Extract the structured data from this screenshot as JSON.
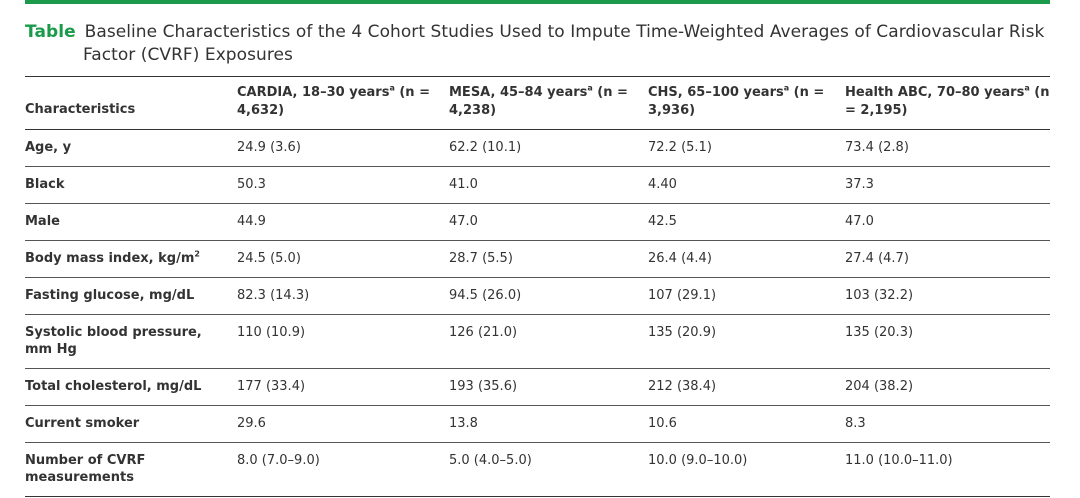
{
  "caption": {
    "label": "Table",
    "text": "Baseline Characteristics of the 4 Cohort Studies Used to Impute Time-Weighted Averages of Cardiovascular Risk Factor (CVRF) Exposures"
  },
  "header": {
    "characteristics": "Characteristics",
    "columns": [
      {
        "name": "CARDIA, 18–30 years",
        "sup": "a",
        "n": " (n = 4,632)"
      },
      {
        "name": "MESA, 45–84 years",
        "sup": "a",
        "n": " (n = 4,238)"
      },
      {
        "name": "CHS, 65–100 years",
        "sup": "a",
        "n": " (n = 3,936)"
      },
      {
        "name": "Health ABC, 70–80 years",
        "sup": "a",
        "n": " (n = 2,195)"
      }
    ]
  },
  "rows": [
    {
      "label": "Age, y",
      "sup": "",
      "values": [
        "24.9 (3.6)",
        "62.2 (10.1)",
        "72.2 (5.1)",
        "73.4 (2.8)"
      ]
    },
    {
      "label": "Black",
      "sup": "",
      "values": [
        "50.3",
        "41.0",
        "4.40",
        "37.3"
      ]
    },
    {
      "label": "Male",
      "sup": "",
      "values": [
        "44.9",
        "47.0",
        "42.5",
        "47.0"
      ]
    },
    {
      "label": "Body mass index, kg/m",
      "sup": "2",
      "values": [
        "24.5 (5.0)",
        "28.7 (5.5)",
        "26.4 (4.4)",
        "27.4 (4.7)"
      ]
    },
    {
      "label": "Fasting glucose, mg/dL",
      "sup": "",
      "values": [
        "82.3 (14.3)",
        "94.5 (26.0)",
        "107 (29.1)",
        "103 (32.2)"
      ]
    },
    {
      "label": "Systolic blood pressure, mm Hg",
      "sup": "",
      "values": [
        "110 (10.9)",
        "126 (21.0)",
        "135 (20.9)",
        "135 (20.3)"
      ]
    },
    {
      "label": "Total cholesterol, mg/dL",
      "sup": "",
      "values": [
        "177 (33.4)",
        "193 (35.6)",
        "212 (38.4)",
        "204 (38.2)"
      ]
    },
    {
      "label": "Current smoker",
      "sup": "",
      "values": [
        "29.6",
        "13.8",
        "10.6",
        "8.3"
      ]
    },
    {
      "label": "Number of CVRF measurements",
      "sup": "",
      "values": [
        "8.0 (7.0–9.0)",
        "5.0 (4.0–5.0)",
        "10.0 (9.0–10.0)",
        "11.0 (10.0–11.0)"
      ]
    }
  ],
  "colors": {
    "accent": "#1a9a4a",
    "text": "#333333"
  }
}
